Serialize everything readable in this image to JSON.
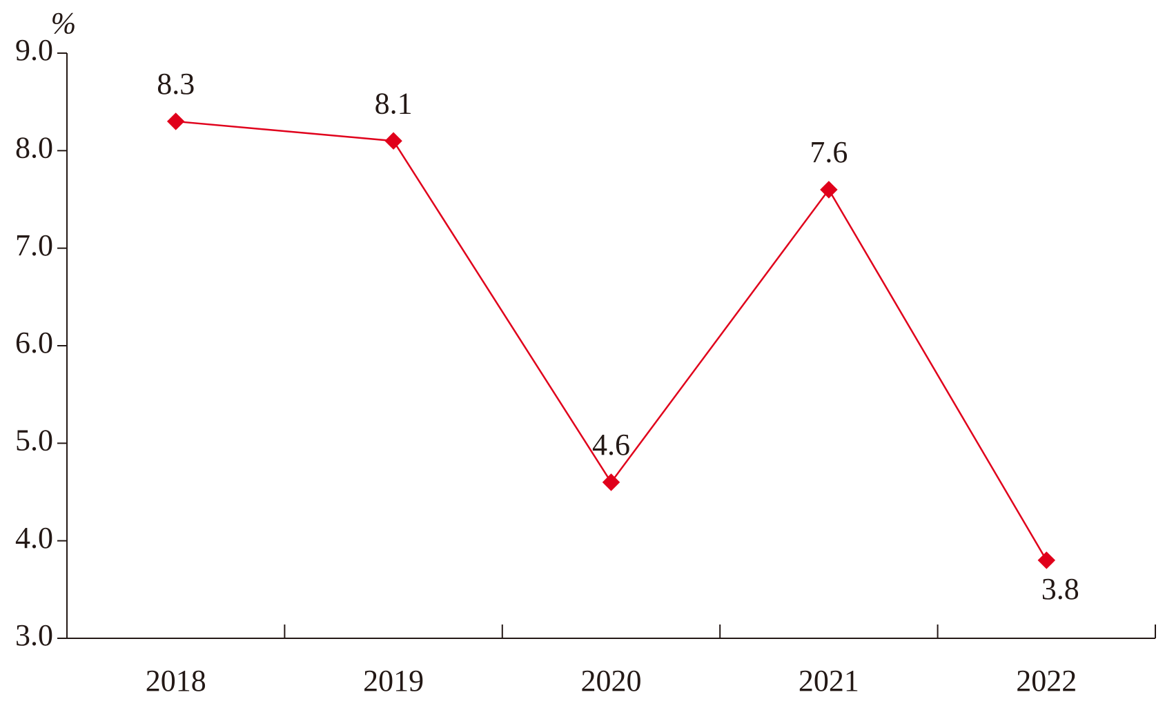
{
  "chart_data": {
    "type": "line",
    "y_unit": "%",
    "categories": [
      "2018",
      "2019",
      "2020",
      "2021",
      "2022"
    ],
    "series": [
      {
        "color": "#e0001b",
        "values": [
          8.3,
          8.1,
          4.6,
          7.6,
          3.8
        ]
      }
    ],
    "ylim": [
      3,
      9
    ],
    "yticks": [
      {
        "value": 3,
        "label": "3.0"
      },
      {
        "value": 4,
        "label": "4.0"
      },
      {
        "value": 5,
        "label": "5.0"
      },
      {
        "value": 6,
        "label": "6.0"
      },
      {
        "value": 7,
        "label": "7.0"
      },
      {
        "value": 8,
        "label": "8.0"
      },
      {
        "value": 9,
        "label": "9.0"
      }
    ]
  }
}
